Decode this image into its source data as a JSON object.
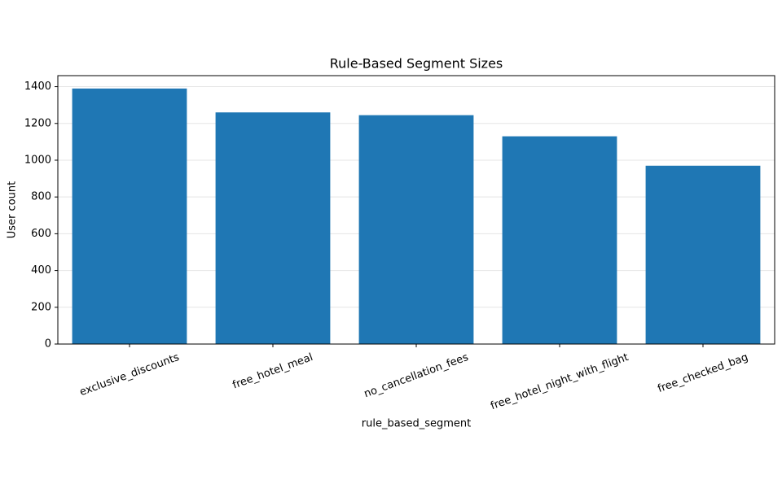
{
  "chart_data": {
    "type": "bar",
    "title": "Rule-Based Segment Sizes",
    "xlabel": "rule_based_segment",
    "ylabel": "User count",
    "categories": [
      "exclusive_discounts",
      "free_hotel_meal",
      "no_cancellation_fees",
      "free_hotel_night_with_flight",
      "free_checked_bag"
    ],
    "values": [
      1390,
      1260,
      1245,
      1130,
      970
    ],
    "color": "#1f77b4",
    "ylim": [
      0,
      1460
    ],
    "yticks": [
      0,
      200,
      400,
      600,
      800,
      1000,
      1200,
      1400
    ],
    "grid": true
  }
}
